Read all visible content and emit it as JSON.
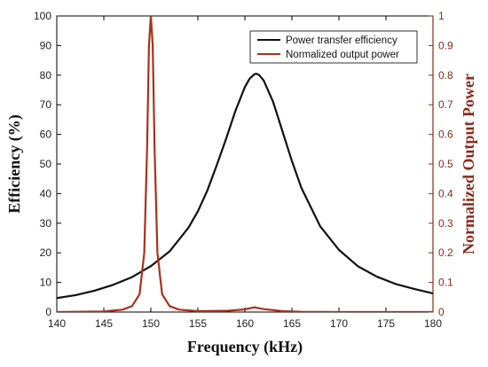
{
  "chart_data": {
    "type": "line",
    "xlabel": "Frequency (kHz)",
    "ylabel_left": "Efficiency (%)",
    "ylabel_right": "Normalized Output Power",
    "xlim": [
      140,
      180
    ],
    "ylim_left": [
      0,
      100
    ],
    "ylim_right": [
      0,
      1
    ],
    "x_ticks": [
      "140",
      "145",
      "150",
      "155",
      "160",
      "165",
      "170",
      "175",
      "180"
    ],
    "y_ticks_left": [
      "0",
      "10",
      "20",
      "30",
      "40",
      "50",
      "60",
      "70",
      "80",
      "90",
      "100"
    ],
    "y_ticks_right": [
      "0",
      "0.1",
      "0.2",
      "0.3",
      "0.4",
      "0.5",
      "0.6",
      "0.7",
      "0.8",
      "0.9",
      "1"
    ],
    "grid": false,
    "legend_position": "top-right",
    "colors": {
      "efficiency": "#111111",
      "power": "#a8321c",
      "right_axis": "#8b2a1a"
    },
    "series": [
      {
        "name": "Power transfer efficiency",
        "axis": "left",
        "x": [
          140,
          142,
          144,
          146,
          148,
          150,
          152,
          154,
          155,
          156,
          157,
          158,
          159,
          160,
          160.5,
          161,
          161.2,
          161.5,
          162,
          163,
          164,
          165,
          166,
          168,
          170,
          172,
          174,
          176,
          178,
          180
        ],
        "values": [
          4.7,
          5.7,
          7.2,
          9.2,
          11.8,
          15.5,
          20.5,
          28.5,
          34,
          41,
          49.5,
          58.5,
          68,
          76,
          78.8,
          80.3,
          80.5,
          80.1,
          78.2,
          71,
          61,
          51,
          42,
          29,
          21,
          15.5,
          12,
          9.5,
          7.8,
          6.3
        ]
      },
      {
        "name": "Normalized output power",
        "axis": "right",
        "x": [
          140,
          145,
          147,
          148,
          148.8,
          149.3,
          149.6,
          149.8,
          150,
          150.2,
          150.4,
          150.7,
          151.2,
          152,
          153,
          155,
          158,
          160,
          161,
          162,
          164,
          166,
          170,
          180
        ],
        "values": [
          0,
          0.002,
          0.008,
          0.02,
          0.06,
          0.2,
          0.55,
          0.9,
          1.0,
          0.9,
          0.55,
          0.2,
          0.06,
          0.02,
          0.008,
          0.003,
          0.004,
          0.009,
          0.016,
          0.01,
          0.003,
          0.001,
          0,
          0
        ]
      }
    ]
  }
}
